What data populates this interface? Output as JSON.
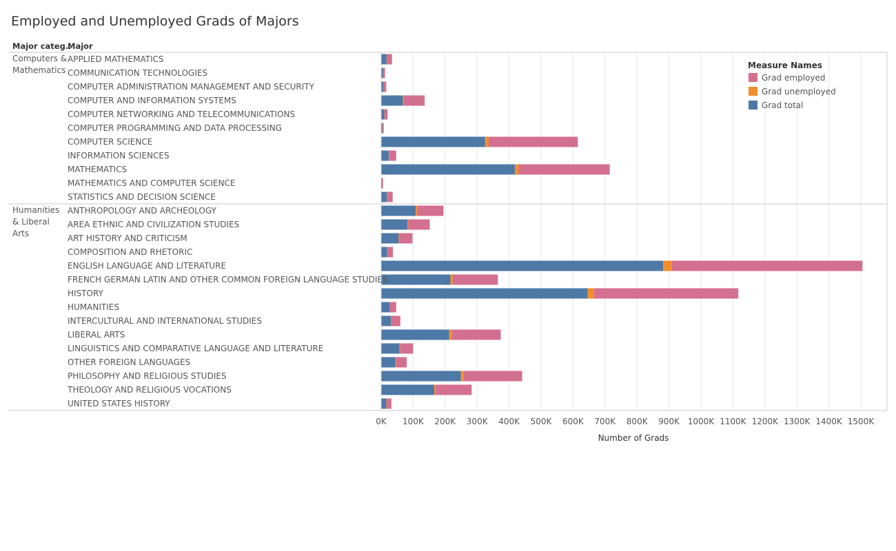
{
  "title": "Employed and Unemployed Grads of Majors",
  "headers": {
    "category": "Major categ..",
    "major": "Major"
  },
  "colors": {
    "employed": "#d4708f",
    "unemployed": "#f28e2b",
    "total": "#4e79a7",
    "grid": "#e8e8e8",
    "divider": "#c8c8c8"
  },
  "chart_data": {
    "type": "bar",
    "orientation": "horizontal",
    "stacked": true,
    "xlabel": "Number of Grads",
    "xlim": [
      0,
      1550000
    ],
    "x_ticks": [
      "0K",
      "100K",
      "200K",
      "300K",
      "400K",
      "500K",
      "600K",
      "700K",
      "800K",
      "900K",
      "1000K",
      "1100K",
      "1200K",
      "1300K",
      "1400K",
      "1500K"
    ],
    "legend": {
      "title": "Measure Names",
      "position": "top-right",
      "entries": [
        {
          "name": "Grad employed",
          "color": "#d4708f"
        },
        {
          "name": "Grad unemployed",
          "color": "#f28e2b"
        },
        {
          "name": "Grad total",
          "color": "#4e79a7"
        }
      ]
    },
    "series_order": [
      "Grad total",
      "Grad unemployed",
      "Grad employed"
    ],
    "groups": [
      {
        "category": [
          "Computers &",
          "Mathematics"
        ],
        "rows": [
          {
            "major": "APPLIED MATHEMATICS",
            "total": 17000,
            "unemployed": 700,
            "employed": 16300
          },
          {
            "major": "COMMUNICATION TECHNOLOGIES",
            "total": 6000,
            "unemployed": 500,
            "employed": 5500
          },
          {
            "major": "COMPUTER ADMINISTRATION MANAGEMENT AND SECURITY",
            "total": 8000,
            "unemployed": 600,
            "employed": 7400
          },
          {
            "major": "COMPUTER AND INFORMATION SYSTEMS",
            "total": 68000,
            "unemployed": 3000,
            "employed": 65000
          },
          {
            "major": "COMPUTER NETWORKING AND TELECOMMUNICATIONS",
            "total": 10000,
            "unemployed": 700,
            "employed": 9300
          },
          {
            "major": "COMPUTER PROGRAMMING AND DATA PROCESSING",
            "total": 4000,
            "unemployed": 300,
            "employed": 3700
          },
          {
            "major": "COMPUTER SCIENCE",
            "total": 325000,
            "unemployed": 11000,
            "employed": 279000
          },
          {
            "major": "INFORMATION SCIENCES",
            "total": 24000,
            "unemployed": 1000,
            "employed": 22000
          },
          {
            "major": "MATHEMATICS",
            "total": 418000,
            "unemployed": 12000,
            "employed": 285000
          },
          {
            "major": "MATHEMATICS AND COMPUTER SCIENCE",
            "total": 3000,
            "unemployed": 200,
            "employed": 2800
          },
          {
            "major": "STATISTICS AND DECISION SCIENCE",
            "total": 18000,
            "unemployed": 700,
            "employed": 17300
          }
        ]
      },
      {
        "category": [
          "Humanities",
          "& Liberal",
          "Arts"
        ],
        "rows": [
          {
            "major": "ANTHROPOLOGY AND ARCHEOLOGY",
            "total": 108000,
            "unemployed": 4000,
            "employed": 83000
          },
          {
            "major": "AREA ETHNIC AND CIVILIZATION STUDIES",
            "total": 82000,
            "unemployed": 3000,
            "employed": 67000
          },
          {
            "major": "ART HISTORY AND CRITICISM",
            "total": 55000,
            "unemployed": 2000,
            "employed": 41000
          },
          {
            "major": "COMPOSITION AND RHETORIC",
            "total": 19000,
            "unemployed": 800,
            "employed": 17200
          },
          {
            "major": "ENGLISH LANGUAGE AND LITERATURE",
            "total": 882000,
            "unemployed": 27000,
            "employed": 596000
          },
          {
            "major": "FRENCH GERMAN LATIN AND OTHER COMMON FOREIGN LANGUAGE STUDIES",
            "total": 217000,
            "unemployed": 7000,
            "employed": 141000
          },
          {
            "major": "HISTORY",
            "total": 646000,
            "unemployed": 20000,
            "employed": 451000
          },
          {
            "major": "HUMANITIES",
            "total": 27000,
            "unemployed": 1000,
            "employed": 19000
          },
          {
            "major": "INTERCULTURAL AND INTERNATIONAL STUDIES",
            "total": 31000,
            "unemployed": 1000,
            "employed": 28000
          },
          {
            "major": "LIBERAL ARTS",
            "total": 213000,
            "unemployed": 8000,
            "employed": 153000
          },
          {
            "major": "LINGUISTICS AND COMPARATIVE LANGUAGE AND LITERATURE",
            "total": 57000,
            "unemployed": 2000,
            "employed": 41000
          },
          {
            "major": "OTHER FOREIGN LANGUAGES",
            "total": 45000,
            "unemployed": 2000,
            "employed": 33000
          },
          {
            "major": "PHILOSOPHY AND RELIGIOUS STUDIES",
            "total": 249000,
            "unemployed": 9000,
            "employed": 183000
          },
          {
            "major": "THEOLOGY AND RELIGIOUS VOCATIONS",
            "total": 166000,
            "unemployed": 4000,
            "employed": 113000
          },
          {
            "major": "UNITED STATES HISTORY",
            "total": 16000,
            "unemployed": 600,
            "employed": 15400
          }
        ]
      }
    ]
  }
}
